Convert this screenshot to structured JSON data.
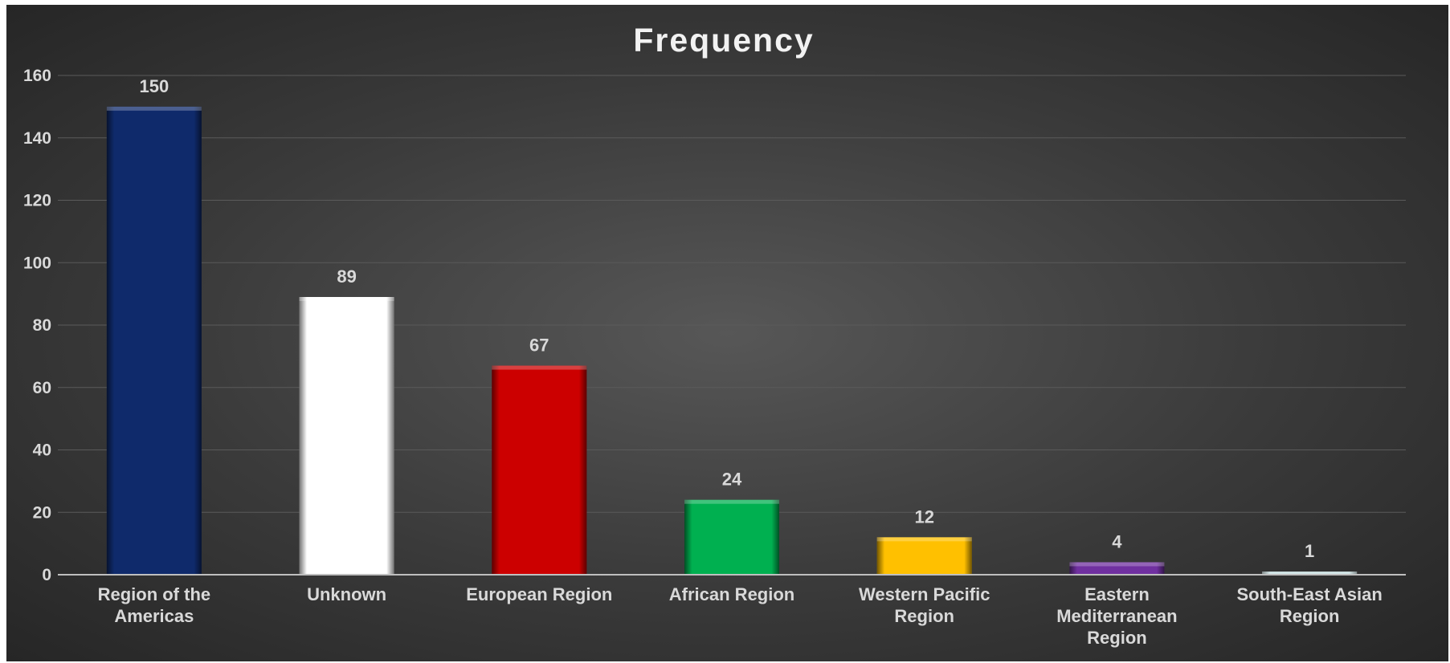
{
  "chart_data": {
    "type": "bar",
    "title": "Frequency",
    "xlabel": "",
    "ylabel": "",
    "ylim": [
      0,
      160
    ],
    "yticks": [
      0,
      20,
      40,
      60,
      80,
      100,
      120,
      140,
      160
    ],
    "grid": true,
    "legend": "none",
    "categories": [
      [
        "Region of the",
        "Americas"
      ],
      [
        "Unknown"
      ],
      [
        "European Region"
      ],
      [
        "African Region"
      ],
      [
        "Western Pacific",
        "Region"
      ],
      [
        "Eastern",
        "Mediterranean",
        "Region"
      ],
      [
        "South-East Asian",
        "Region"
      ]
    ],
    "values": [
      150,
      89,
      67,
      24,
      12,
      4,
      1
    ],
    "colors": [
      "#0f2a6b",
      "#ffffff",
      "#cc0000",
      "#00b050",
      "#ffc000",
      "#7030a0",
      "#c5dfe0"
    ]
  }
}
